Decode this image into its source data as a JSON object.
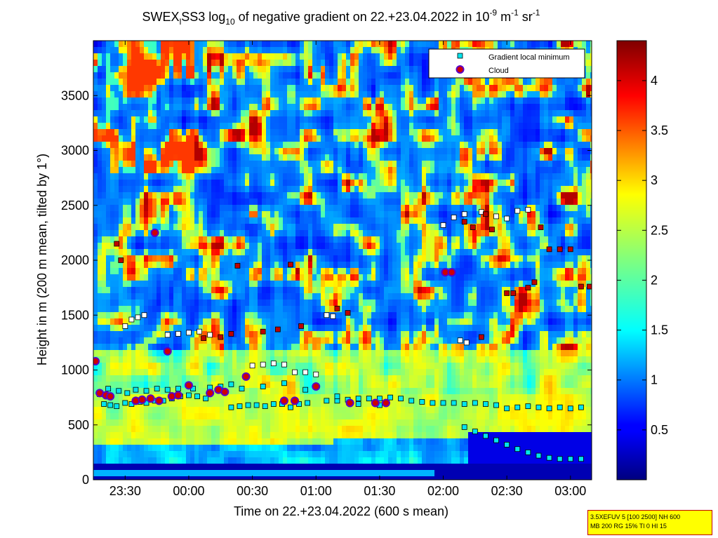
{
  "chart_data": {
    "type": "heatmap",
    "title": {
      "pre": "SWEX",
      "sub1": "l",
      "mid1": "SS3 log",
      "sub2": "10",
      "mid2": " of negative gradient on 22.+23.04.2022 in 10",
      "sup1": "-9",
      "mid3": " m",
      "sup2": "-1",
      "mid4": " sr",
      "sup3": "-1"
    },
    "xlabel": "Time on 22.+23.04.2022 (600 s mean)",
    "ylabel": "Height in m (200 m mean, tilted by 1°)",
    "xlim": [
      "23:15",
      "03:10"
    ],
    "ylim": [
      0,
      4000
    ],
    "xticks": [
      "23:30",
      "00:00",
      "00:30",
      "01:00",
      "01:30",
      "02:00",
      "02:30",
      "03:00"
    ],
    "yticks": [
      0,
      500,
      1000,
      1500,
      2000,
      2500,
      3000,
      3500
    ],
    "colorbar": {
      "ticks": [
        "0.5",
        "1",
        "1.5",
        "2",
        "2.5",
        "3",
        "3.5",
        "4"
      ],
      "range": [
        0,
        4.4
      ],
      "colormap": "jet"
    },
    "legend": {
      "placement": "top-right",
      "entries": [
        "Gradient local minimum",
        "Cloud"
      ],
      "colors": [
        "#00e5ee",
        "#d00000"
      ]
    },
    "layers": [
      {
        "name": "Gradient local minimum",
        "points": [
          [
            "23:20",
            690
          ],
          [
            "23:23",
            680
          ],
          [
            "23:26",
            670
          ],
          [
            "23:30",
            700
          ],
          [
            "23:33",
            690
          ],
          [
            "23:37",
            710
          ],
          [
            "23:40",
            700
          ],
          [
            "23:44",
            720
          ],
          [
            "23:48",
            720
          ],
          [
            "23:52",
            740
          ],
          [
            "23:56",
            760
          ],
          [
            "00:00",
            770
          ],
          [
            "00:04",
            760
          ],
          [
            "00:08",
            740
          ],
          [
            "00:20",
            660
          ],
          [
            "00:24",
            670
          ],
          [
            "00:28",
            680
          ],
          [
            "00:32",
            680
          ],
          [
            "00:36",
            670
          ],
          [
            "00:40",
            690
          ],
          [
            "00:44",
            690
          ],
          [
            "00:48",
            660
          ],
          [
            "00:52",
            690
          ],
          [
            "00:56",
            700
          ],
          [
            "01:05",
            720
          ],
          [
            "01:10",
            720
          ],
          [
            "01:15",
            730
          ],
          [
            "01:20",
            740
          ],
          [
            "01:25",
            740
          ],
          [
            "01:30",
            740
          ],
          [
            "01:35",
            750
          ],
          [
            "01:40",
            740
          ],
          [
            "01:45",
            720
          ],
          [
            "01:50",
            710
          ],
          [
            "01:55",
            700
          ],
          [
            "02:00",
            700
          ],
          [
            "02:05",
            700
          ],
          [
            "02:10",
            690
          ],
          [
            "02:15",
            700
          ],
          [
            "02:20",
            690
          ],
          [
            "02:25",
            680
          ],
          [
            "02:30",
            650
          ],
          [
            "02:35",
            660
          ],
          [
            "02:40",
            670
          ],
          [
            "02:45",
            660
          ],
          [
            "02:50",
            650
          ],
          [
            "02:55",
            660
          ],
          [
            "03:00",
            650
          ],
          [
            "03:05",
            660
          ],
          [
            "02:10",
            480
          ],
          [
            "02:15",
            440
          ],
          [
            "02:20",
            400
          ],
          [
            "02:25",
            360
          ],
          [
            "02:30",
            320
          ],
          [
            "02:35",
            280
          ],
          [
            "02:40",
            250
          ],
          [
            "02:45",
            220
          ],
          [
            "02:50",
            200
          ],
          [
            "02:55",
            190
          ],
          [
            "03:00",
            190
          ],
          [
            "03:05",
            190
          ],
          [
            "23:30",
            1400
          ],
          [
            "23:33",
            1460
          ],
          [
            "23:36",
            1480
          ],
          [
            "23:39",
            1500
          ],
          [
            "23:50",
            1320
          ],
          [
            "23:55",
            1330
          ],
          [
            "00:00",
            1340
          ],
          [
            "00:05",
            1350
          ],
          [
            "00:10",
            1320
          ],
          [
            "00:30",
            1040
          ],
          [
            "00:35",
            1050
          ],
          [
            "00:40",
            1060
          ],
          [
            "00:45",
            1050
          ],
          [
            "00:50",
            980
          ],
          [
            "00:55",
            980
          ],
          [
            "01:00",
            960
          ],
          [
            "01:05",
            1500
          ],
          [
            "01:08",
            1490
          ],
          [
            "02:00",
            2320
          ],
          [
            "02:05",
            2390
          ],
          [
            "02:10",
            2420
          ],
          [
            "02:18",
            2440
          ],
          [
            "02:25",
            2400
          ],
          [
            "02:30",
            2380
          ],
          [
            "02:35",
            2450
          ],
          [
            "02:40",
            2460
          ],
          [
            "02:08",
            1270
          ],
          [
            "02:11",
            1250
          ],
          [
            "23:18",
            780
          ],
          [
            "23:22",
            830
          ],
          [
            "23:27",
            810
          ],
          [
            "23:31",
            790
          ],
          [
            "23:35",
            820
          ],
          [
            "23:40",
            810
          ],
          [
            "23:45",
            830
          ],
          [
            "23:50",
            820
          ],
          [
            "23:55",
            830
          ],
          [
            "00:02",
            830
          ],
          [
            "00:10",
            840
          ],
          [
            "00:15",
            850
          ],
          [
            "00:20",
            870
          ],
          [
            "00:25",
            830
          ],
          [
            "00:35",
            850
          ],
          [
            "00:45",
            880
          ],
          [
            "00:55",
            820
          ],
          [
            "01:00",
            850
          ],
          [
            "01:10",
            760
          ],
          [
            "01:20",
            690
          ],
          [
            "01:30",
            680
          ]
        ]
      },
      {
        "name": "Cloud",
        "points": [
          [
            "23:16",
            1080
          ],
          [
            "23:18",
            790
          ],
          [
            "23:21",
            770
          ],
          [
            "23:23",
            760
          ],
          [
            "23:35",
            720
          ],
          [
            "23:38",
            730
          ],
          [
            "23:42",
            740
          ],
          [
            "23:44",
            2250
          ],
          [
            "23:46",
            720
          ],
          [
            "23:50",
            1170
          ],
          [
            "23:52",
            760
          ],
          [
            "23:55",
            770
          ],
          [
            "00:00",
            860
          ],
          [
            "00:10",
            790
          ],
          [
            "00:14",
            820
          ],
          [
            "00:17",
            800
          ],
          [
            "00:27",
            940
          ],
          [
            "00:45",
            720
          ],
          [
            "00:50",
            720
          ],
          [
            "01:00",
            850
          ],
          [
            "01:16",
            700
          ],
          [
            "01:28",
            700
          ],
          [
            "01:33",
            700
          ],
          [
            "02:01",
            1890
          ],
          [
            "02:04",
            1890
          ]
        ]
      },
      {
        "name": "Red minima",
        "points": [
          [
            "23:26",
            2150
          ],
          [
            "23:28",
            2000
          ],
          [
            "00:07",
            1290
          ],
          [
            "00:15",
            1300
          ],
          [
            "00:20",
            1330
          ],
          [
            "00:23",
            1950
          ],
          [
            "00:35",
            1350
          ],
          [
            "00:42",
            1370
          ],
          [
            "00:48",
            1960
          ],
          [
            "00:53",
            1400
          ],
          [
            "01:10",
            1560
          ],
          [
            "01:15",
            1520
          ],
          [
            "02:10",
            2350
          ],
          [
            "02:14",
            2300
          ],
          [
            "02:20",
            2420
          ],
          [
            "02:23",
            2280
          ],
          [
            "02:30",
            1700
          ],
          [
            "02:33",
            1700
          ],
          [
            "02:40",
            1750
          ],
          [
            "02:43",
            1800
          ],
          [
            "02:46",
            2300
          ],
          [
            "02:50",
            2100
          ],
          [
            "02:55",
            2100
          ],
          [
            "03:00",
            2100
          ],
          [
            "03:05",
            1760
          ],
          [
            "03:09",
            1760
          ],
          [
            "02:18",
            1300
          ]
        ]
      }
    ]
  },
  "info_box": {
    "line1": "3.5XEFUV 5 [100 2500] NH 600",
    "line2": "MB 200 RG 15% Tl 0 HI 15"
  }
}
